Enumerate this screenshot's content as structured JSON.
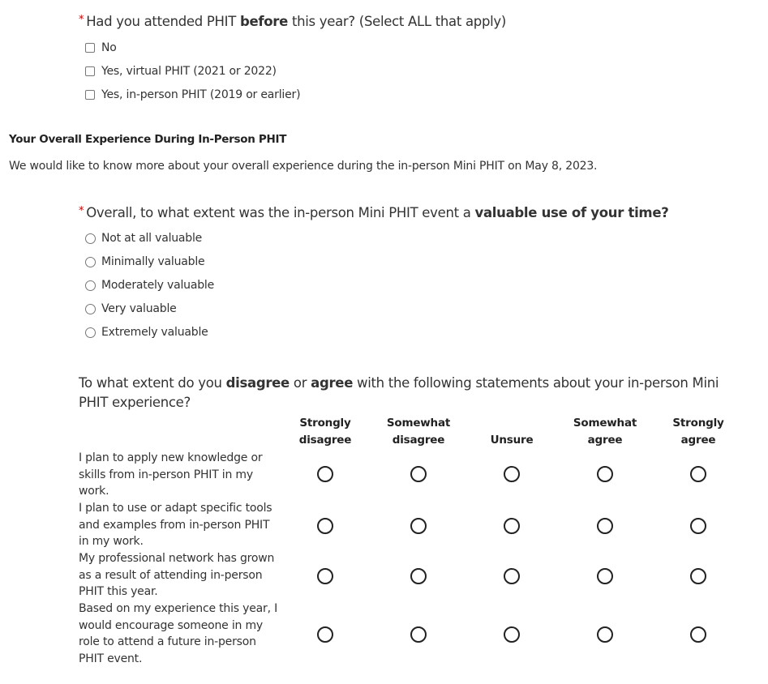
{
  "q1": {
    "pre": "Had you attended PHIT ",
    "bold": "before",
    "post": " this year? (Select ALL that apply)",
    "required": "*",
    "options": [
      "No",
      "Yes, virtual PHIT (2021 or 2022)",
      "Yes, in-person PHIT (2019 or earlier)"
    ]
  },
  "section": {
    "title": "Your Overall Experience During In-Person PHIT",
    "description": "We would like to know more about your overall experience during the in-person Mini PHIT on May 8, 2023."
  },
  "q2": {
    "pre": "Overall, to what extent was the in-person Mini PHIT event a ",
    "bold": "valuable use of your time?",
    "required": "*",
    "options": [
      "Not at all valuable",
      "Minimally valuable",
      "Moderately valuable",
      "Very valuable",
      "Extremely valuable"
    ]
  },
  "q3": {
    "pre": "To what extent do you ",
    "bold1": "disagree",
    "mid": " or ",
    "bold2": "agree",
    "post": " with the following statements about your in-person Mini PHIT experience?",
    "columns": [
      [
        "Strongly",
        "disagree"
      ],
      [
        "Somewhat",
        "disagree"
      ],
      [
        "",
        "Unsure"
      ],
      [
        "Somewhat",
        "agree"
      ],
      [
        "Strongly",
        "agree"
      ]
    ],
    "rows": [
      "I plan to apply new knowledge or skills from in-person PHIT in my work.",
      "I plan to use or adapt specific tools and examples from in-person PHIT in my work.",
      "My professional network has grown as a result of attending in-person PHIT this year.",
      "Based on my experience this year, I would encourage someone in my role to attend a future in-person PHIT event."
    ]
  }
}
